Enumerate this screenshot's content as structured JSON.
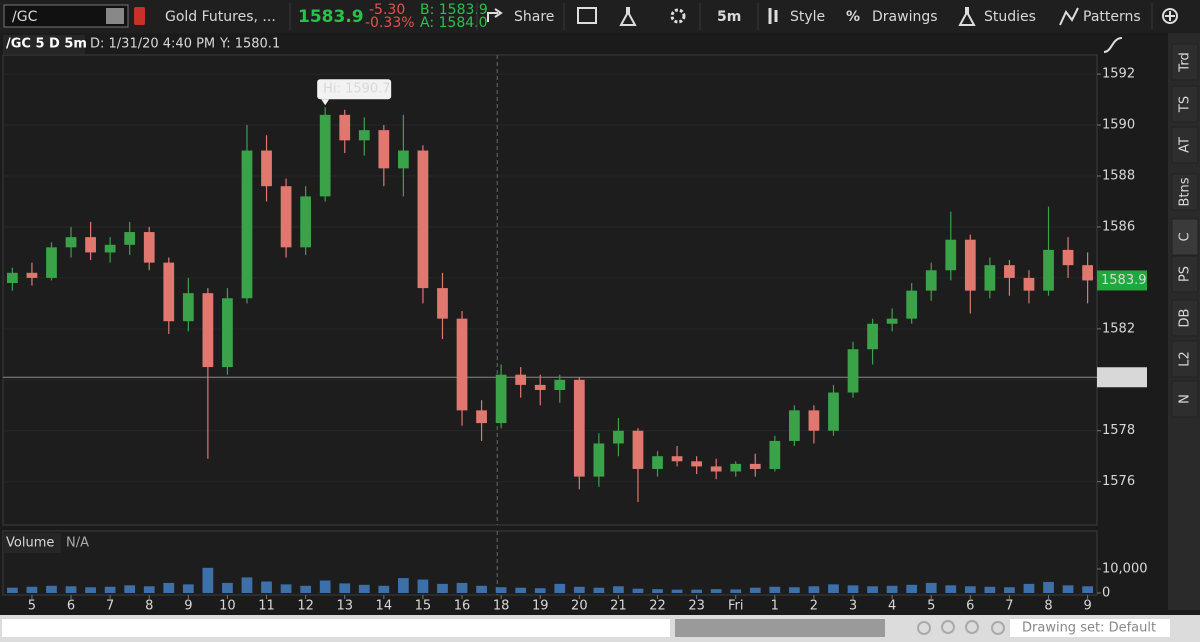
{
  "toolbar": {
    "symbol": "/GC",
    "description": "Gold Futures, ...",
    "last": "1583.9",
    "change": "-5.30",
    "change_pct": "-0.33%",
    "bid": "B: 1583.9",
    "ask": "A: 1584.0",
    "share": "Share",
    "interval": "5m",
    "style": "Style",
    "drawings": "Drawings",
    "studies": "Studies",
    "patterns": "Patterns"
  },
  "sidebar": {
    "tabs": [
      "Trd",
      "TS",
      "AT",
      "Btns",
      "C",
      "PS",
      "DB",
      "L2",
      "N"
    ]
  },
  "status": {
    "drawing_set": "Drawing set: Default"
  },
  "chart_data": {
    "type": "candlestick",
    "title": "/GC 5 D 5m",
    "header_date": "D: 1/31/20 4:40 PM",
    "header_y": "Y: 1580.1",
    "x": [
      -0.5,
      0,
      0.5,
      1,
      1.5,
      2,
      2.5,
      3,
      3.5,
      4,
      4.5,
      5,
      5.5,
      6,
      6.5,
      7,
      7.5,
      8,
      8.5,
      9,
      9.5,
      10,
      10.5,
      11,
      11.5,
      12,
      12.5,
      13,
      13.5,
      14,
      14.5,
      15,
      15.5,
      16,
      16.5,
      17,
      17.5,
      18,
      18.5,
      19,
      19.5,
      20,
      20.5,
      21,
      21.5,
      22,
      22.5,
      23,
      23.5,
      24,
      24.5,
      25,
      25.5,
      26,
      26.5,
      27
    ],
    "open": [
      1583.8,
      1584.2,
      1584.0,
      1585.2,
      1585.6,
      1585.0,
      1585.3,
      1585.8,
      1584.6,
      1582.3,
      1583.4,
      1580.5,
      1583.2,
      1589.0,
      1587.6,
      1585.2,
      1587.2,
      1590.4,
      1589.4,
      1589.8,
      1588.3,
      1589.0,
      1583.6,
      1582.4,
      1578.8,
      1578.3,
      1580.2,
      1579.8,
      1579.6,
      1580.0,
      1576.2,
      1577.5,
      1578.0,
      1576.5,
      1577.0,
      1576.8,
      1576.6,
      1576.4,
      1576.7,
      1576.5,
      1577.6,
      1578.8,
      1578.0,
      1579.5,
      1581.2,
      1582.2,
      1582.4,
      1583.5,
      1584.3,
      1585.5,
      1583.5,
      1584.5,
      1584.0,
      1583.5,
      1585.1,
      1584.5
    ],
    "high": [
      1584.4,
      1584.6,
      1585.4,
      1586.0,
      1586.2,
      1585.6,
      1586.2,
      1586.0,
      1584.8,
      1584.0,
      1583.6,
      1583.6,
      1590.0,
      1589.6,
      1587.9,
      1587.6,
      1590.7,
      1590.6,
      1590.3,
      1590.0,
      1590.4,
      1589.2,
      1584.2,
      1582.7,
      1579.2,
      1580.6,
      1580.5,
      1580.2,
      1580.2,
      1580.1,
      1577.9,
      1578.5,
      1578.1,
      1577.2,
      1577.4,
      1577.0,
      1576.9,
      1576.8,
      1577.1,
      1577.8,
      1579.0,
      1579.0,
      1579.8,
      1581.5,
      1582.4,
      1582.8,
      1583.8,
      1584.6,
      1586.6,
      1585.7,
      1584.8,
      1584.7,
      1584.3,
      1586.8,
      1585.6,
      1585.0
    ],
    "low": [
      1583.5,
      1583.7,
      1583.9,
      1584.8,
      1584.7,
      1584.6,
      1584.9,
      1584.3,
      1581.8,
      1581.9,
      1576.9,
      1580.2,
      1583.0,
      1587.0,
      1584.8,
      1584.9,
      1587.0,
      1588.9,
      1588.8,
      1587.6,
      1587.2,
      1583.0,
      1581.6,
      1578.2,
      1577.6,
      1578.1,
      1579.3,
      1579.0,
      1579.1,
      1575.7,
      1575.8,
      1577.0,
      1575.2,
      1576.2,
      1576.6,
      1576.3,
      1576.1,
      1576.2,
      1576.2,
      1576.4,
      1577.4,
      1577.5,
      1577.8,
      1579.3,
      1580.6,
      1581.9,
      1582.2,
      1583.1,
      1583.9,
      1582.6,
      1583.2,
      1583.3,
      1583.0,
      1583.3,
      1584.0,
      1583.0
    ],
    "close": [
      1584.2,
      1584.0,
      1585.2,
      1585.6,
      1585.0,
      1585.3,
      1585.8,
      1584.6,
      1582.3,
      1583.4,
      1580.5,
      1583.2,
      1589.0,
      1587.6,
      1585.2,
      1587.2,
      1590.4,
      1589.4,
      1589.8,
      1588.3,
      1589.0,
      1583.6,
      1582.4,
      1578.8,
      1578.3,
      1580.2,
      1579.8,
      1579.6,
      1580.0,
      1576.2,
      1577.5,
      1578.0,
      1576.5,
      1577.0,
      1576.8,
      1576.6,
      1576.4,
      1576.7,
      1576.5,
      1577.6,
      1578.8,
      1578.0,
      1579.5,
      1581.2,
      1582.2,
      1582.4,
      1583.5,
      1584.3,
      1585.5,
      1583.5,
      1584.5,
      1584.0,
      1583.5,
      1585.1,
      1584.5,
      1583.9
    ],
    "up_color": "#3aa34a",
    "down_color": "#e07870",
    "ylim": [
      1574.3,
      1592.75
    ],
    "yticks": [
      1576,
      1578,
      1580,
      1582,
      1584,
      1586,
      1588,
      1590,
      1592
    ],
    "xlim": [
      -0.74,
      27.24
    ],
    "xticks": [
      {
        "value": 0,
        "label": "5"
      },
      {
        "value": 1,
        "label": "6"
      },
      {
        "value": 2,
        "label": "7"
      },
      {
        "value": 3,
        "label": "8"
      },
      {
        "value": 4,
        "label": "9"
      },
      {
        "value": 5,
        "label": "10"
      },
      {
        "value": 6,
        "label": "11"
      },
      {
        "value": 7,
        "label": "12"
      },
      {
        "value": 8,
        "label": "13"
      },
      {
        "value": 9,
        "label": "14"
      },
      {
        "value": 10,
        "label": "15"
      },
      {
        "value": 11,
        "label": "16"
      },
      {
        "value": 12,
        "label": "18"
      },
      {
        "value": 13,
        "label": "19"
      },
      {
        "value": 14,
        "label": "20"
      },
      {
        "value": 15,
        "label": "21"
      },
      {
        "value": 16,
        "label": "22"
      },
      {
        "value": 17,
        "label": "23"
      },
      {
        "value": 18,
        "label": "Fri"
      },
      {
        "value": 19,
        "label": "1"
      },
      {
        "value": 20,
        "label": "2"
      },
      {
        "value": 21,
        "label": "3"
      },
      {
        "value": 22,
        "label": "4"
      },
      {
        "value": 23,
        "label": "5"
      },
      {
        "value": 24,
        "label": "6"
      },
      {
        "value": 25,
        "label": "7"
      },
      {
        "value": 26,
        "label": "8"
      },
      {
        "value": 27,
        "label": "9"
      }
    ],
    "last_price": 1583.9,
    "crosshair": {
      "x": 11.9,
      "y": 1580.1
    },
    "annotations": [
      {
        "label": "Hi: 1590.7",
        "x": 7.5,
        "y": 1590.7
      }
    ],
    "volume": {
      "title": "Volume",
      "subtitle": "N/A",
      "color": "#3d6fa8",
      "ylim": [
        0,
        16667
      ],
      "yticks": [
        {
          "value": 0,
          "label": "0"
        },
        {
          "value": 10000,
          "label": "10,000"
        }
      ],
      "values": [
        2200,
        2600,
        3000,
        2800,
        2400,
        2600,
        3200,
        2800,
        4200,
        3600,
        10500,
        4200,
        6500,
        4800,
        3600,
        3000,
        5200,
        4000,
        3400,
        3000,
        6200,
        5600,
        3800,
        4200,
        3000,
        2400,
        2200,
        2000,
        3800,
        2600,
        2200,
        2800,
        1800,
        1600,
        1400,
        1400,
        1600,
        1500,
        2200,
        2600,
        2400,
        2800,
        3600,
        3200,
        2800,
        3000,
        3400,
        4200,
        3200,
        2800,
        2600,
        2400,
        3800,
        4600,
        3200,
        2800
      ]
    }
  }
}
